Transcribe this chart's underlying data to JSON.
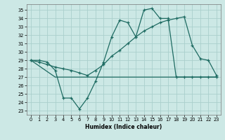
{
  "xlabel": "Humidex (Indice chaleur)",
  "bg_color": "#cce8e5",
  "grid_color": "#aad0cc",
  "line_color": "#1e6b62",
  "xlim": [
    -0.5,
    23.5
  ],
  "ylim": [
    22.5,
    35.7
  ],
  "yticks": [
    23,
    24,
    25,
    26,
    27,
    28,
    29,
    30,
    31,
    32,
    33,
    34,
    35
  ],
  "xticks": [
    0,
    1,
    2,
    3,
    4,
    5,
    6,
    7,
    8,
    9,
    10,
    11,
    12,
    13,
    14,
    15,
    16,
    17,
    18,
    19,
    20,
    21,
    22,
    23
  ],
  "line1_x": [
    0,
    1,
    2,
    3,
    4,
    5,
    6,
    7,
    8,
    9,
    10,
    11,
    12,
    13,
    14,
    15,
    16,
    17,
    18,
    19,
    20,
    21,
    22,
    23
  ],
  "line1_y": [
    29.0,
    29.0,
    28.8,
    27.8,
    24.5,
    24.5,
    23.2,
    24.5,
    26.5,
    28.8,
    31.8,
    33.8,
    33.5,
    31.8,
    35.0,
    35.2,
    34.0,
    34.0,
    27.0,
    27.0,
    27.0,
    27.0,
    27.0,
    27.0
  ],
  "line2_x": [
    0,
    1,
    2,
    3,
    4,
    5,
    6,
    7,
    8,
    9,
    10,
    11,
    12,
    13,
    14,
    15,
    16,
    17,
    18,
    19,
    20,
    21,
    22,
    23
  ],
  "line2_y": [
    29.0,
    28.8,
    28.5,
    28.2,
    28.0,
    27.8,
    27.5,
    27.2,
    27.8,
    28.5,
    29.5,
    30.2,
    31.0,
    31.8,
    32.5,
    33.0,
    33.5,
    33.8,
    34.0,
    34.2,
    30.8,
    29.2,
    29.0,
    27.2
  ],
  "line3_x": [
    0,
    3,
    18,
    23
  ],
  "line3_y": [
    29.0,
    27.0,
    27.0,
    27.0
  ]
}
